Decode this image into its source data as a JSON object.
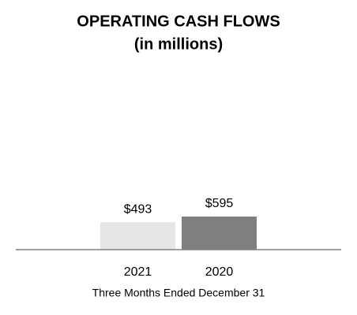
{
  "chart_data": {
    "type": "bar",
    "title": "OPERATING CASH FLOWS",
    "subtitle": "(in millions)",
    "categories": [
      "2021",
      "2020"
    ],
    "values": [
      493,
      595
    ],
    "value_labels": [
      "$493",
      "$595"
    ],
    "colors": [
      "#e6e6e6",
      "#7f7f7f"
    ],
    "xlabel": "Three Months Ended December 31"
  }
}
